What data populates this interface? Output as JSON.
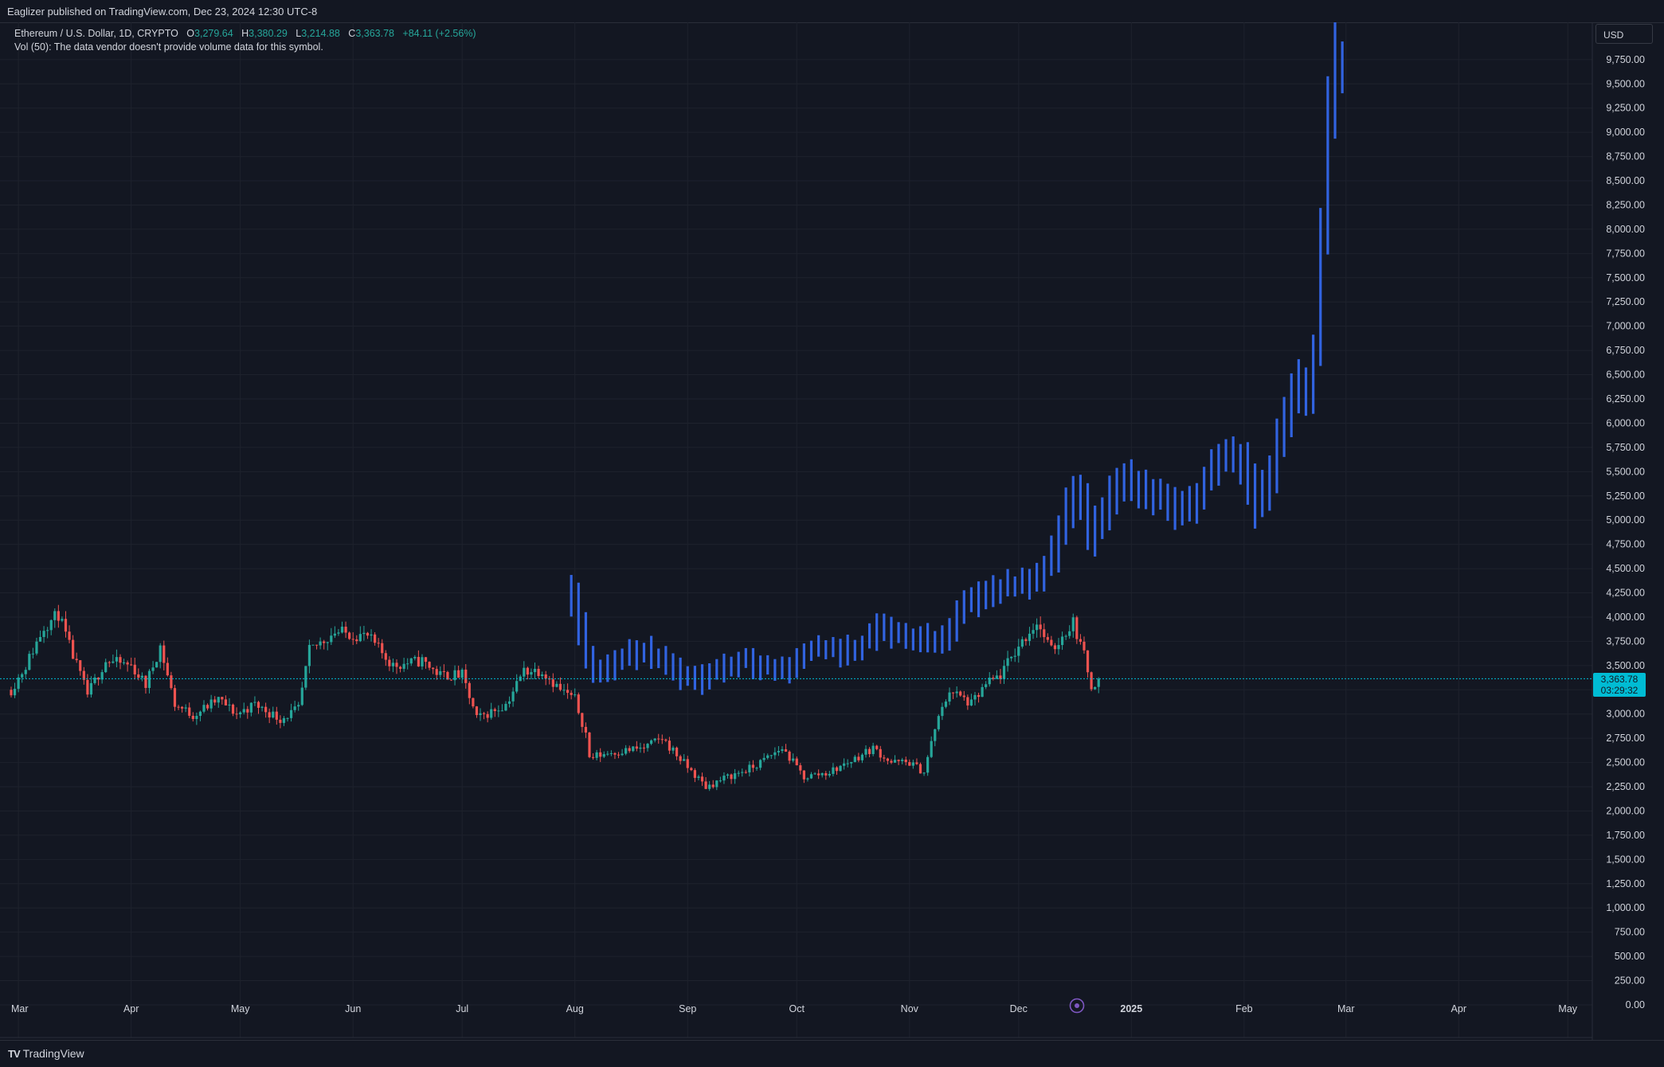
{
  "header": {
    "publisher_text": "Eaglizer published on TradingView.com, Dec 23, 2024 12:30 UTC-8"
  },
  "legend": {
    "symbol": "Ethereum / U.S. Dollar, 1D, CRYPTO",
    "open_label": "O",
    "open": "3,279.64",
    "high_label": "H",
    "high": "3,380.29",
    "low_label": "L",
    "low": "3,214.88",
    "close_label": "C",
    "close": "3,363.78",
    "change": "+84.11 (+2.56%)",
    "volume_note": "Vol (50): The data vendor doesn't provide volume data for this symbol."
  },
  "currency_button": "USD",
  "price_tag": {
    "price": "3,363.78",
    "countdown": "03:29:32"
  },
  "footer": {
    "brand": "TradingView",
    "brand_mark": "TV"
  },
  "colors": {
    "background": "#131722",
    "grid": "#1e222d",
    "up": "#26a69a",
    "down": "#ef5350",
    "projection": "#3163e0",
    "text": "#d1d4dc",
    "price_line": "#00bcd4",
    "marker": "#7e57c2"
  },
  "chart_data": {
    "type": "candlestick",
    "y_axis": {
      "min": 0,
      "max": 9750,
      "step": 250,
      "side": "right",
      "tick_labels": [
        "0.00",
        "250.00",
        "500.00",
        "750.00",
        "1,000.00",
        "1,250.00",
        "1,500.00",
        "1,750.00",
        "2,000.00",
        "2,250.00",
        "2,500.00",
        "2,750.00",
        "3,000.00",
        "3,250.00",
        "3,500.00",
        "3,750.00",
        "4,000.00",
        "4,250.00",
        "4,500.00",
        "4,750.00",
        "5,000.00",
        "5,250.00",
        "5,500.00",
        "5,750.00",
        "6,000.00",
        "6,250.00",
        "6,500.00",
        "6,750.00",
        "7,000.00",
        "7,250.00",
        "7,500.00",
        "7,750.00",
        "8,000.00",
        "8,250.00",
        "8,500.00",
        "8,750.00",
        "9,000.00",
        "9,250.00",
        "9,500.00",
        "9,750.00"
      ]
    },
    "x_axis": {
      "labels": [
        {
          "label": "Mar",
          "date": "2024-03-01"
        },
        {
          "label": "Apr",
          "date": "2024-04-01"
        },
        {
          "label": "May",
          "date": "2024-05-01"
        },
        {
          "label": "Jun",
          "date": "2024-06-01"
        },
        {
          "label": "Jul",
          "date": "2024-07-01"
        },
        {
          "label": "Aug",
          "date": "2024-08-01"
        },
        {
          "label": "Sep",
          "date": "2024-09-01"
        },
        {
          "label": "Oct",
          "date": "2024-10-01"
        },
        {
          "label": "Nov",
          "date": "2024-11-01"
        },
        {
          "label": "Dec",
          "date": "2024-12-01"
        },
        {
          "label": "2025",
          "date": "2025-01-01",
          "bold": true
        },
        {
          "label": "Feb",
          "date": "2025-02-01"
        },
        {
          "label": "Mar",
          "date": "2025-03-01"
        },
        {
          "label": "Apr",
          "date": "2025-04-01"
        },
        {
          "label": "May",
          "date": "2025-05-01"
        }
      ]
    },
    "current_price": 3363.78,
    "actual_series": {
      "name": "ETHUSD daily",
      "start_date": "2024-02-28",
      "end_date": "2024-12-23",
      "anchors": [
        [
          "2024-02-28",
          3250
        ],
        [
          "2024-03-03",
          3500
        ],
        [
          "2024-03-08",
          3900
        ],
        [
          "2024-03-12",
          4030
        ],
        [
          "2024-03-15",
          3700
        ],
        [
          "2024-03-20",
          3200
        ],
        [
          "2024-03-25",
          3550
        ],
        [
          "2024-04-01",
          3500
        ],
        [
          "2024-04-05",
          3300
        ],
        [
          "2024-04-09",
          3700
        ],
        [
          "2024-04-13",
          3100
        ],
        [
          "2024-04-18",
          2990
        ],
        [
          "2024-04-25",
          3150
        ],
        [
          "2024-04-30",
          3000
        ],
        [
          "2024-05-05",
          3100
        ],
        [
          "2024-05-12",
          2950
        ],
        [
          "2024-05-17",
          3050
        ],
        [
          "2024-05-20",
          3650
        ],
        [
          "2024-05-27",
          3850
        ],
        [
          "2024-06-05",
          3800
        ],
        [
          "2024-06-12",
          3500
        ],
        [
          "2024-06-20",
          3550
        ],
        [
          "2024-06-25",
          3400
        ],
        [
          "2024-07-01",
          3400
        ],
        [
          "2024-07-05",
          2950
        ],
        [
          "2024-07-13",
          3100
        ],
        [
          "2024-07-18",
          3450
        ],
        [
          "2024-07-23",
          3450
        ],
        [
          "2024-07-28",
          3250
        ],
        [
          "2024-08-01",
          3150
        ],
        [
          "2024-08-04",
          2800
        ],
        [
          "2024-08-05",
          2550
        ],
        [
          "2024-08-10",
          2600
        ],
        [
          "2024-08-20",
          2650
        ],
        [
          "2024-08-25",
          2750
        ],
        [
          "2024-09-01",
          2450
        ],
        [
          "2024-09-06",
          2250
        ],
        [
          "2024-09-12",
          2350
        ],
        [
          "2024-09-19",
          2450
        ],
        [
          "2024-09-27",
          2650
        ],
        [
          "2024-10-03",
          2350
        ],
        [
          "2024-10-10",
          2400
        ],
        [
          "2024-10-15",
          2500
        ],
        [
          "2024-10-22",
          2650
        ],
        [
          "2024-10-27",
          2500
        ],
        [
          "2024-11-01",
          2500
        ],
        [
          "2024-11-05",
          2400
        ],
        [
          "2024-11-08",
          2850
        ],
        [
          "2024-11-12",
          3250
        ],
        [
          "2024-11-18",
          3100
        ],
        [
          "2024-11-22",
          3300
        ],
        [
          "2024-11-26",
          3400
        ],
        [
          "2024-12-01",
          3700
        ],
        [
          "2024-12-06",
          3950
        ],
        [
          "2024-12-10",
          3650
        ],
        [
          "2024-12-16",
          3950
        ],
        [
          "2024-12-19",
          3600
        ],
        [
          "2024-12-21",
          3300
        ],
        [
          "2024-12-23",
          3364
        ]
      ]
    },
    "projection_series": {
      "name": "bar pattern projection",
      "note": "fractal projection bars",
      "start_date": "2024-07-31",
      "end_date": "2025-02-28",
      "anchors": [
        [
          "2024-07-31",
          4300
        ],
        [
          "2024-08-02",
          4200
        ],
        [
          "2024-08-04",
          3900
        ],
        [
          "2024-08-06",
          3600
        ],
        [
          "2024-08-09",
          3400
        ],
        [
          "2024-08-15",
          3600
        ],
        [
          "2024-08-22",
          3650
        ],
        [
          "2024-08-28",
          3550
        ],
        [
          "2024-09-01",
          3400
        ],
        [
          "2024-09-05",
          3350
        ],
        [
          "2024-09-12",
          3500
        ],
        [
          "2024-09-19",
          3550
        ],
        [
          "2024-09-26",
          3450
        ],
        [
          "2024-09-30",
          3450
        ],
        [
          "2024-10-05",
          3650
        ],
        [
          "2024-10-10",
          3700
        ],
        [
          "2024-10-15",
          3650
        ],
        [
          "2024-10-20",
          3700
        ],
        [
          "2024-10-25",
          3900
        ],
        [
          "2024-10-30",
          3850
        ],
        [
          "2024-11-03",
          3750
        ],
        [
          "2024-11-08",
          3750
        ],
        [
          "2024-11-13",
          3800
        ],
        [
          "2024-11-18",
          4150
        ],
        [
          "2024-11-26",
          4300
        ],
        [
          "2024-12-04",
          4350
        ],
        [
          "2024-12-10",
          4500
        ],
        [
          "2024-12-16",
          5100
        ],
        [
          "2024-12-19",
          5400
        ],
        [
          "2024-12-22",
          4800
        ],
        [
          "2024-12-27",
          5200
        ],
        [
          "2025-01-01",
          5450
        ],
        [
          "2025-01-06",
          5300
        ],
        [
          "2025-01-12",
          5250
        ],
        [
          "2025-01-16",
          5050
        ],
        [
          "2025-01-20",
          5200
        ],
        [
          "2025-01-26",
          5650
        ],
        [
          "2025-01-30",
          5750
        ],
        [
          "2025-02-03",
          5500
        ],
        [
          "2025-02-06",
          5150
        ],
        [
          "2025-02-10",
          5500
        ],
        [
          "2025-02-13",
          6000
        ],
        [
          "2025-02-17",
          6400
        ],
        [
          "2025-02-20",
          6350
        ],
        [
          "2025-02-22",
          6700
        ],
        [
          "2025-02-24",
          8000
        ],
        [
          "2025-02-26",
          9200
        ],
        [
          "2025-02-28",
          9700
        ]
      ]
    }
  }
}
